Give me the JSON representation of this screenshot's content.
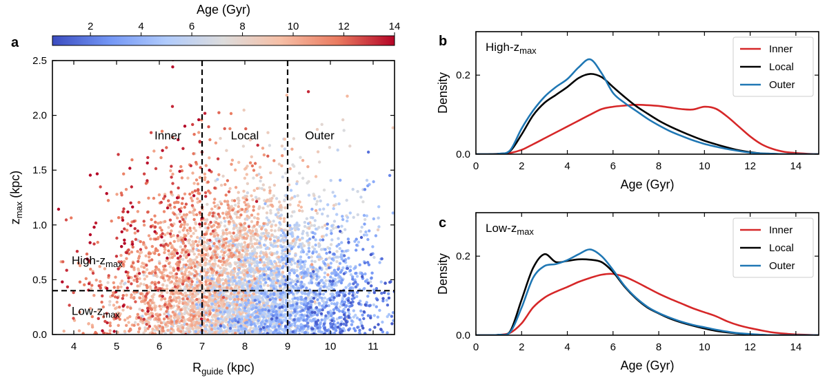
{
  "chart_data": [
    {
      "panel": "a",
      "type": "scatter",
      "xlabel": "R",
      "xlabel_sub": "guide",
      "xlabel_unit": " (kpc)",
      "ylabel": "z",
      "ylabel_sub": "max",
      "ylabel_unit": " (kpc)",
      "xlim": [
        3.5,
        11.5
      ],
      "ylim": [
        0.0,
        2.5
      ],
      "xticks": [
        4,
        5,
        6,
        7,
        8,
        9,
        10,
        11
      ],
      "yticks": [
        0.0,
        0.5,
        1.0,
        1.5,
        2.0,
        2.5
      ],
      "colorbar": {
        "label": "Age (Gyr)",
        "range": [
          0.5,
          14.0
        ],
        "ticks": [
          2,
          4,
          6,
          8,
          10,
          12,
          14
        ],
        "colormap": "coolwarm",
        "colors": [
          "#3b4cc0",
          "#7396f5",
          "#b0cbfc",
          "#dddcdc",
          "#f6bfa6",
          "#ea7b60",
          "#b40426"
        ]
      },
      "dividers": {
        "vertical_x": [
          7,
          9
        ],
        "horizontal_y": 0.4,
        "style": "dashed"
      },
      "region_labels": [
        {
          "text": "Inner",
          "x": 6.2,
          "y": 1.78
        },
        {
          "text": "Local",
          "x": 8.0,
          "y": 1.78
        },
        {
          "text": "Outer",
          "x": 9.75,
          "y": 1.78
        }
      ],
      "split_labels": [
        {
          "main": "High-z",
          "sub": "max",
          "x": 3.95,
          "y": 0.64
        },
        {
          "main": "Low-z",
          "sub": "max",
          "x": 3.95,
          "y": 0.18
        }
      ],
      "points_description": {
        "n_points": 5200,
        "distribution": "dense cloud; older stars (red) dominate small R and high z; younger stars (blue) dominate R > 7 kpc and low z"
      }
    },
    {
      "panel": "b",
      "type": "line",
      "title_main": "High-z",
      "title_sub": "max",
      "xlabel": "Age (Gyr)",
      "ylabel": "Density",
      "xlim": [
        0,
        15
      ],
      "ylim": [
        0,
        0.31
      ],
      "xticks": [
        0,
        2,
        4,
        6,
        8,
        10,
        12,
        14
      ],
      "yticks": [
        0.0,
        0.2
      ],
      "ytick_labels": [
        "0.0",
        "0.2"
      ],
      "legend_position": "top-right",
      "x": [
        0,
        0.5,
        1,
        1.5,
        2,
        2.5,
        3,
        3.5,
        4,
        4.5,
        5,
        5.5,
        6,
        6.5,
        7,
        7.5,
        8,
        8.5,
        9,
        9.5,
        10,
        10.5,
        11,
        11.5,
        12,
        12.5,
        13,
        13.5,
        14,
        14.5,
        15
      ],
      "series": [
        {
          "name": "Inner",
          "color": "#d62728",
          "values": [
            0,
            0,
            0.001,
            0.003,
            0.011,
            0.025,
            0.04,
            0.055,
            0.07,
            0.085,
            0.1,
            0.114,
            0.12,
            0.123,
            0.125,
            0.124,
            0.122,
            0.118,
            0.114,
            0.113,
            0.12,
            0.115,
            0.095,
            0.07,
            0.045,
            0.025,
            0.013,
            0.006,
            0.003,
            0.001,
            0
          ]
        },
        {
          "name": "Local",
          "color": "#000000",
          "values": [
            0,
            0,
            0.001,
            0.008,
            0.05,
            0.098,
            0.13,
            0.15,
            0.17,
            0.193,
            0.203,
            0.195,
            0.17,
            0.145,
            0.122,
            0.103,
            0.085,
            0.07,
            0.057,
            0.045,
            0.034,
            0.025,
            0.017,
            0.01,
            0.005,
            0.002,
            0.001,
            0,
            0,
            0,
            0
          ]
        },
        {
          "name": "Outer",
          "color": "#1f77b4",
          "values": [
            0,
            0,
            0.001,
            0.01,
            0.065,
            0.11,
            0.145,
            0.17,
            0.19,
            0.22,
            0.24,
            0.205,
            0.155,
            0.13,
            0.11,
            0.09,
            0.073,
            0.058,
            0.046,
            0.035,
            0.026,
            0.019,
            0.013,
            0.008,
            0.004,
            0.002,
            0.001,
            0,
            0,
            0,
            0
          ]
        }
      ]
    },
    {
      "panel": "c",
      "type": "line",
      "title_main": "Low-z",
      "title_sub": "max",
      "xlabel": "Age (Gyr)",
      "ylabel": "Density",
      "xlim": [
        0,
        15
      ],
      "ylim": [
        0,
        0.31
      ],
      "xticks": [
        0,
        2,
        4,
        6,
        8,
        10,
        12,
        14
      ],
      "yticks": [
        0.0,
        0.2
      ],
      "ytick_labels": [
        "0.0",
        "0.2"
      ],
      "legend_position": "top-right",
      "x": [
        0,
        0.5,
        1,
        1.5,
        2,
        2.5,
        3,
        3.5,
        4,
        4.5,
        5,
        5.5,
        6,
        6.5,
        7,
        7.5,
        8,
        8.5,
        9,
        9.5,
        10,
        10.5,
        11,
        11.5,
        12,
        12.5,
        13,
        13.5,
        14,
        14.5,
        15
      ],
      "series": [
        {
          "name": "Inner",
          "color": "#d62728",
          "values": [
            0,
            0,
            0.001,
            0.006,
            0.03,
            0.07,
            0.095,
            0.11,
            0.122,
            0.135,
            0.145,
            0.153,
            0.155,
            0.148,
            0.135,
            0.12,
            0.105,
            0.092,
            0.08,
            0.068,
            0.058,
            0.048,
            0.035,
            0.025,
            0.018,
            0.012,
            0.007,
            0.004,
            0.002,
            0.001,
            0
          ]
        },
        {
          "name": "Local",
          "color": "#000000",
          "values": [
            0,
            0,
            0.001,
            0.01,
            0.09,
            0.17,
            0.205,
            0.185,
            0.188,
            0.192,
            0.191,
            0.185,
            0.16,
            0.123,
            0.093,
            0.07,
            0.055,
            0.042,
            0.032,
            0.024,
            0.017,
            0.011,
            0.007,
            0.004,
            0.002,
            0.001,
            0,
            0,
            0,
            0,
            0
          ]
        },
        {
          "name": "Outer",
          "color": "#1f77b4",
          "values": [
            0,
            0,
            0.001,
            0.008,
            0.07,
            0.145,
            0.175,
            0.18,
            0.19,
            0.205,
            0.217,
            0.2,
            0.165,
            0.125,
            0.095,
            0.072,
            0.056,
            0.044,
            0.034,
            0.026,
            0.02,
            0.014,
            0.009,
            0.005,
            0.003,
            0.001,
            0,
            0,
            0,
            0,
            0
          ]
        }
      ]
    }
  ]
}
